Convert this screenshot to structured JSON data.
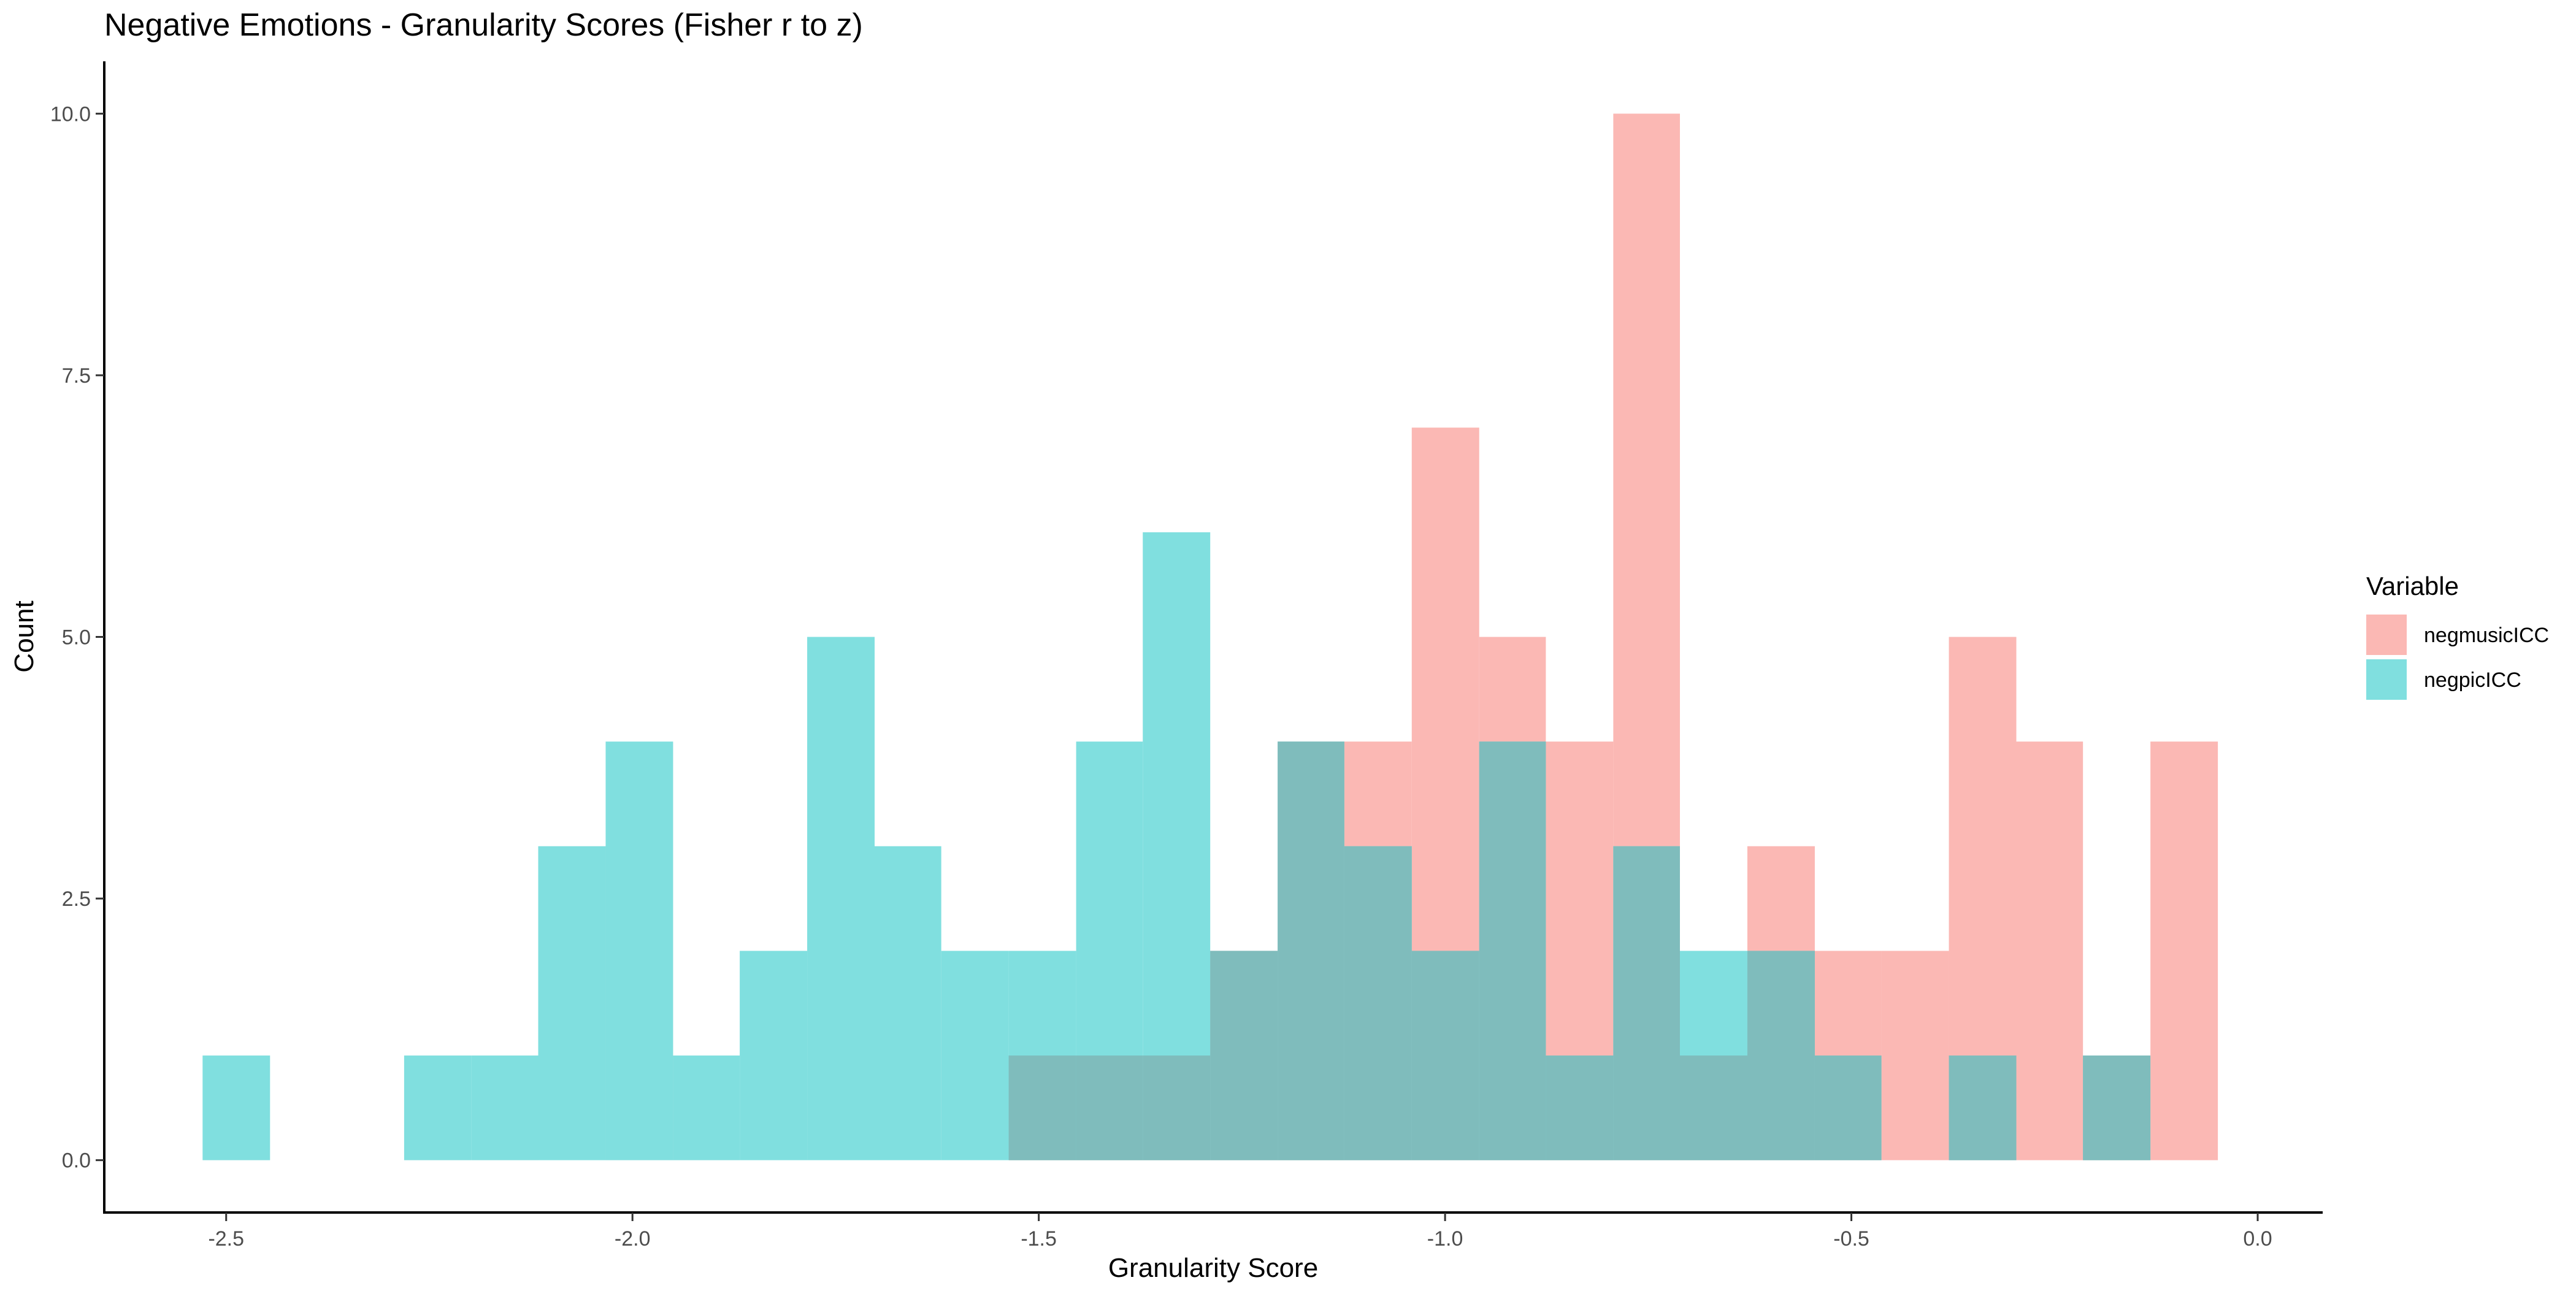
{
  "chart_data": {
    "type": "bar",
    "title": "Negative Emotions - Granularity Scores (Fisher r to z)",
    "xlabel": "Granularity Score",
    "ylabel": "Count",
    "xlim": [
      -2.65,
      0.08
    ],
    "ylim": [
      -0.5,
      10.5
    ],
    "bin_width": 0.0826,
    "x_ticks": [
      -2.5,
      -2.0,
      -1.5,
      -1.0,
      -0.5,
      0.0
    ],
    "x_tick_labels": [
      "-2.5",
      "-2.0",
      "-1.5",
      "-1.0",
      "-0.5",
      "0.0"
    ],
    "y_ticks": [
      0,
      2.5,
      5,
      7.5,
      10
    ],
    "y_tick_labels": [
      "0.0",
      "2.5",
      "5.0",
      "7.5",
      "10.0"
    ],
    "grid": false,
    "legend": {
      "title": "Variable",
      "position": "right"
    },
    "overlap_color": "#7fbcbc",
    "series": [
      {
        "name": "negmusicICC",
        "color": "#fbb8b4",
        "bins": [
          {
            "x0": -1.537,
            "x1": -1.454,
            "count": 1
          },
          {
            "x0": -1.454,
            "x1": -1.372,
            "count": 1
          },
          {
            "x0": -1.372,
            "x1": -1.289,
            "count": 1
          },
          {
            "x0": -1.289,
            "x1": -1.206,
            "count": 2
          },
          {
            "x0": -1.206,
            "x1": -1.124,
            "count": 4
          },
          {
            "x0": -1.124,
            "x1": -1.041,
            "count": 4
          },
          {
            "x0": -1.041,
            "x1": -0.958,
            "count": 7
          },
          {
            "x0": -0.958,
            "x1": -0.876,
            "count": 5
          },
          {
            "x0": -0.876,
            "x1": -0.793,
            "count": 4
          },
          {
            "x0": -0.793,
            "x1": -0.711,
            "count": 10
          },
          {
            "x0": -0.711,
            "x1": -0.628,
            "count": 1
          },
          {
            "x0": -0.628,
            "x1": -0.545,
            "count": 3
          },
          {
            "x0": -0.545,
            "x1": -0.463,
            "count": 2
          },
          {
            "x0": -0.463,
            "x1": -0.38,
            "count": 2
          },
          {
            "x0": -0.38,
            "x1": -0.297,
            "count": 5
          },
          {
            "x0": -0.297,
            "x1": -0.215,
            "count": 4
          },
          {
            "x0": -0.215,
            "x1": -0.132,
            "count": 1
          },
          {
            "x0": -0.132,
            "x1": -0.049,
            "count": 4
          }
        ]
      },
      {
        "name": "negpicICC",
        "color": "#80dfdf",
        "bins": [
          {
            "x0": -2.529,
            "x1": -2.446,
            "count": 1
          },
          {
            "x0": -2.281,
            "x1": -2.198,
            "count": 1
          },
          {
            "x0": -2.198,
            "x1": -2.116,
            "count": 1
          },
          {
            "x0": -2.116,
            "x1": -2.033,
            "count": 3
          },
          {
            "x0": -2.033,
            "x1": -1.95,
            "count": 4
          },
          {
            "x0": -1.95,
            "x1": -1.868,
            "count": 1
          },
          {
            "x0": -1.868,
            "x1": -1.785,
            "count": 2
          },
          {
            "x0": -1.785,
            "x1": -1.702,
            "count": 5
          },
          {
            "x0": -1.702,
            "x1": -1.62,
            "count": 3
          },
          {
            "x0": -1.62,
            "x1": -1.537,
            "count": 2
          },
          {
            "x0": -1.537,
            "x1": -1.454,
            "count": 2
          },
          {
            "x0": -1.454,
            "x1": -1.372,
            "count": 4
          },
          {
            "x0": -1.372,
            "x1": -1.289,
            "count": 6
          },
          {
            "x0": -1.289,
            "x1": -1.206,
            "count": 2
          },
          {
            "x0": -1.206,
            "x1": -1.124,
            "count": 4
          },
          {
            "x0": -1.124,
            "x1": -1.041,
            "count": 3
          },
          {
            "x0": -1.041,
            "x1": -0.958,
            "count": 2
          },
          {
            "x0": -0.958,
            "x1": -0.876,
            "count": 4
          },
          {
            "x0": -0.876,
            "x1": -0.793,
            "count": 1
          },
          {
            "x0": -0.793,
            "x1": -0.711,
            "count": 3
          },
          {
            "x0": -0.711,
            "x1": -0.628,
            "count": 2
          },
          {
            "x0": -0.628,
            "x1": -0.545,
            "count": 2
          },
          {
            "x0": -0.545,
            "x1": -0.463,
            "count": 1
          },
          {
            "x0": -0.38,
            "x1": -0.297,
            "count": 1
          },
          {
            "x0": -0.215,
            "x1": -0.132,
            "count": 1
          }
        ]
      }
    ]
  }
}
